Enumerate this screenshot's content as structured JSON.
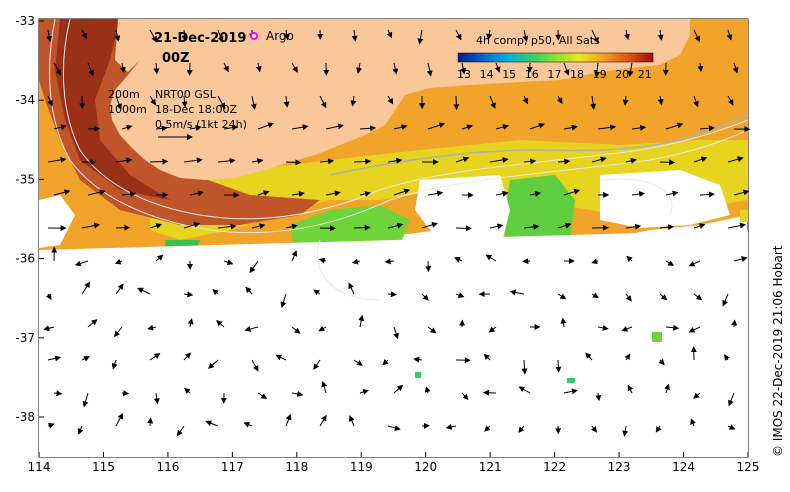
{
  "header": {
    "date": "21-Dec-2019",
    "time": "00Z",
    "argo_label": "Argo"
  },
  "legend": {
    "title": "4h comp, p50, All Sats",
    "ticks": [
      "13",
      "14",
      "15",
      "16",
      "17",
      "18",
      "19",
      "20",
      "21"
    ]
  },
  "info": {
    "contour_200": "200m",
    "contour_1000": "1000m",
    "product": "NRT00 GSL",
    "product_time": "18-Dec 18:00Z",
    "scale": "0.5m/s (1kt 24h)"
  },
  "axes": {
    "x_ticks": [
      "114",
      "115",
      "116",
      "117",
      "118",
      "119",
      "120",
      "121",
      "122",
      "123",
      "124",
      "125"
    ],
    "y_ticks": [
      "-33",
      "-34",
      "-35",
      "-36",
      "-37",
      "-38"
    ]
  },
  "credit": "© IMOS 22-Dec-2019 21:06 Hobart",
  "colors": {
    "land": "#f9c799",
    "water": "#ffffff",
    "scale_ramp": [
      "#0a1a8c",
      "#0060d0",
      "#00b0e0",
      "#30d070",
      "#8ce030",
      "#e8e820",
      "#f0a020",
      "#e05010",
      "#9a1010"
    ]
  }
}
